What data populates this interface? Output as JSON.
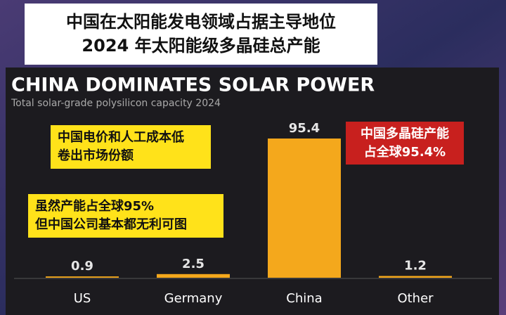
{
  "header": {
    "lines": [
      "中国在太阳能发电领域占据主导地位",
      "2024 年太阳能级多晶硅总产能"
    ]
  },
  "chart_data": {
    "type": "bar",
    "title": "CHINA DOMINATES SOLAR POWER",
    "subtitle": "Total solar-grade polysilicon capacity 2024",
    "categories": [
      "US",
      "Germany",
      "China",
      "Other"
    ],
    "values": [
      0.9,
      2.5,
      95.4,
      1.2
    ],
    "color": "#f4a81c",
    "annotations": [
      {
        "lines": [
          "中国电价和人工成本低",
          "卷出市场份额"
        ],
        "color": "#ffe21a",
        "text_color": "#111111"
      },
      {
        "lines": [
          "虽然产能占全球95%",
          "但中国公司基本都无利可图"
        ],
        "color": "#ffe21a",
        "text_color": "#111111"
      },
      {
        "lines": [
          "中国多晶硅产能",
          "占全球95.4%"
        ],
        "color": "#c8201e",
        "text_color": "#ffffff"
      }
    ]
  }
}
